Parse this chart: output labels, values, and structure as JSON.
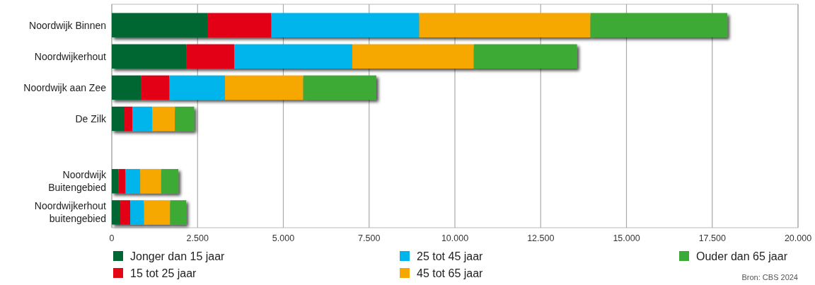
{
  "chart_data": {
    "type": "bar",
    "orientation": "horizontal",
    "stacked": true,
    "categories": [
      "Noordwijk Binnen",
      "Noordwijkerhout",
      "Noordwijk aan Zee",
      "De Zilk",
      null,
      "Noordwijk Buitengebied",
      "Noordwijkerhout buitengebied"
    ],
    "series": [
      {
        "name": "Jonger dan 15 jaar",
        "color": "#006633",
        "values": [
          2800,
          2170,
          860,
          350,
          null,
          190,
          250
        ]
      },
      {
        "name": "15 tot 25 jaar",
        "color": "#e30613",
        "values": [
          1850,
          1400,
          820,
          250,
          null,
          210,
          290
        ]
      },
      {
        "name": "25 tot 45 jaar",
        "color": "#00b5ec",
        "values": [
          4310,
          3440,
          1620,
          580,
          null,
          430,
          400
        ]
      },
      {
        "name": "45 tot 65 jaar",
        "color": "#f6a800",
        "values": [
          4990,
          3540,
          2280,
          660,
          null,
          610,
          760
        ]
      },
      {
        "name": "Ouder dan 65 jaar",
        "color": "#3caa36",
        "values": [
          3990,
          3010,
          2130,
          560,
          null,
          500,
          470
        ]
      }
    ],
    "xlim": [
      0,
      20000
    ],
    "xticks": [
      {
        "value": 0,
        "label": "0"
      },
      {
        "value": 2500,
        "label": "2.500"
      },
      {
        "value": 5000,
        "label": "5.000"
      },
      {
        "value": 7500,
        "label": "7.500"
      },
      {
        "value": 10000,
        "label": "10.000"
      },
      {
        "value": 12500,
        "label": "12.500"
      },
      {
        "value": 15000,
        "label": "15.000"
      },
      {
        "value": 17500,
        "label": "17.500"
      },
      {
        "value": 20000,
        "label": "20.000"
      }
    ],
    "grid": "x",
    "legend": "bottom",
    "annotations": [
      "Bron: CBS 2024"
    ]
  }
}
